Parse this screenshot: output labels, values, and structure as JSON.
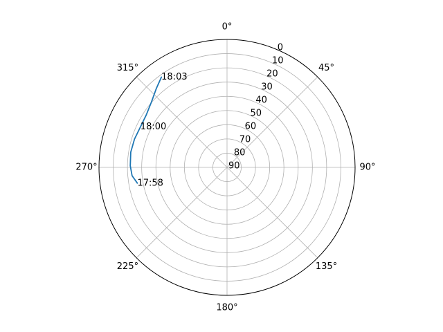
{
  "chart_data": {
    "type": "polar-line",
    "title": "",
    "theta_zero": "N",
    "theta_direction": "clockwise",
    "angle_ticks": [
      {
        "deg": 0,
        "label": "0°"
      },
      {
        "deg": 45,
        "label": "45°"
      },
      {
        "deg": 90,
        "label": "90°"
      },
      {
        "deg": 135,
        "label": "135°"
      },
      {
        "deg": 180,
        "label": "180°"
      },
      {
        "deg": 225,
        "label": "225°"
      },
      {
        "deg": 270,
        "label": "270°"
      },
      {
        "deg": 315,
        "label": "315°"
      }
    ],
    "radial_axis": {
      "inverted": true,
      "min_value": 0,
      "max_value": 90,
      "label_angle_deg": 22.5,
      "ticks": [
        {
          "value": 0,
          "label": "0"
        },
        {
          "value": 10,
          "label": "10"
        },
        {
          "value": 20,
          "label": "20"
        },
        {
          "value": 30,
          "label": "30"
        },
        {
          "value": 40,
          "label": "40"
        },
        {
          "value": 50,
          "label": "50"
        },
        {
          "value": 60,
          "label": "60"
        },
        {
          "value": 70,
          "label": "70"
        },
        {
          "value": 80,
          "label": "80"
        },
        {
          "value": 90,
          "label": "90"
        }
      ]
    },
    "grid": true,
    "series": [
      {
        "color": "#1f77b4",
        "points": [
          {
            "azimuth": 260,
            "elevation": 26
          },
          {
            "azimuth": 265,
            "elevation": 23
          },
          {
            "azimuth": 271,
            "elevation": 22
          },
          {
            "azimuth": 279,
            "elevation": 21.5
          },
          {
            "azimuth": 287,
            "elevation": 22
          },
          {
            "azimuth": 295,
            "elevation": 22.8
          },
          {
            "azimuth": 303,
            "elevation": 22.3
          },
          {
            "azimuth": 311,
            "elevation": 19.7
          },
          {
            "azimuth": 318,
            "elevation": 15.6
          },
          {
            "azimuth": 324,
            "elevation": 11.5
          }
        ]
      }
    ],
    "annotations": [
      {
        "label": "17:58",
        "azimuth": 260,
        "elevation": 26
      },
      {
        "label": "18:00",
        "azimuth": 295,
        "elevation": 22.8
      },
      {
        "label": "18:03",
        "azimuth": 324,
        "elevation": 11.5
      }
    ]
  }
}
